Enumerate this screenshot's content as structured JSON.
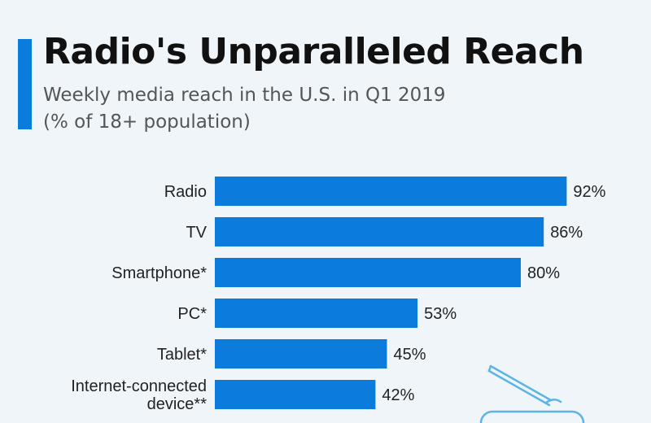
{
  "header": {
    "title": "Radio's Unparalleled Reach",
    "subtitle_line1": "Weekly media reach in the U.S. in Q1 2019",
    "subtitle_line2": "(% of 18+ population)"
  },
  "colors": {
    "bar": "#0b7bdc",
    "background": "#f0f5fa",
    "accent": "#0b7bdc"
  },
  "decoration": {
    "icon": "radio-icon"
  },
  "chart_data": {
    "type": "bar",
    "orientation": "horizontal",
    "title": "Radio's Unparalleled Reach",
    "subtitle": "Weekly media reach in the U.S. in Q1 2019 (% of 18+ population)",
    "categories": [
      "Radio",
      "TV",
      "Smartphone*",
      "PC*",
      "Tablet*",
      "Internet-connected device**"
    ],
    "category_lines": [
      [
        "Radio"
      ],
      [
        "TV"
      ],
      [
        "Smartphone*"
      ],
      [
        "PC*"
      ],
      [
        "Tablet*"
      ],
      [
        "Internet-connected",
        "device**"
      ]
    ],
    "values": [
      92,
      86,
      80,
      53,
      45,
      42
    ],
    "value_labels": [
      "92%",
      "86%",
      "80%",
      "53%",
      "45%",
      "42%"
    ],
    "unit": "%",
    "xlim": [
      0,
      100
    ],
    "grid": false,
    "legend": "none"
  }
}
